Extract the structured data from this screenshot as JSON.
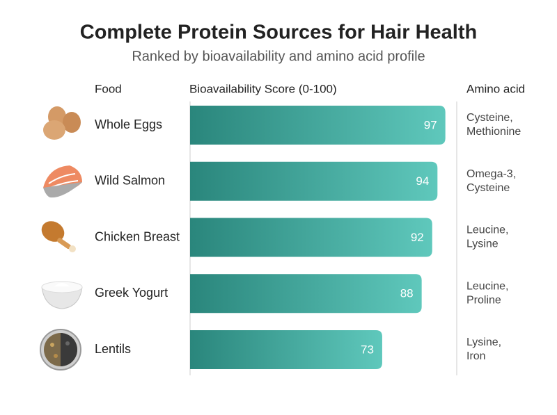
{
  "chart_data": {
    "type": "bar",
    "orientation": "horizontal",
    "title": "Complete Protein Sources for Hair Health",
    "subtitle": "Ranked by bioavailability and amino acid profile",
    "column_headers": {
      "food": "Food",
      "score": "Bioavailability Score (0-100)",
      "amino": "Amino acid"
    },
    "categories": [
      "Whole Eggs",
      "Wild Salmon",
      "Chicken Breast",
      "Greek Yogurt",
      "Lentils"
    ],
    "values": [
      97,
      94,
      92,
      88,
      73
    ],
    "amino_acids": [
      [
        "Cysteine,",
        "Methionine"
      ],
      [
        "Omega-3,",
        "Cysteine"
      ],
      [
        "Leucine,",
        "Lysine"
      ],
      [
        "Leucine,",
        "Proline"
      ],
      [
        "Lysine,",
        "Iron"
      ]
    ],
    "xlim": [
      0,
      100
    ],
    "colors": [
      "#2a867c",
      "#5fc8bc"
    ]
  }
}
